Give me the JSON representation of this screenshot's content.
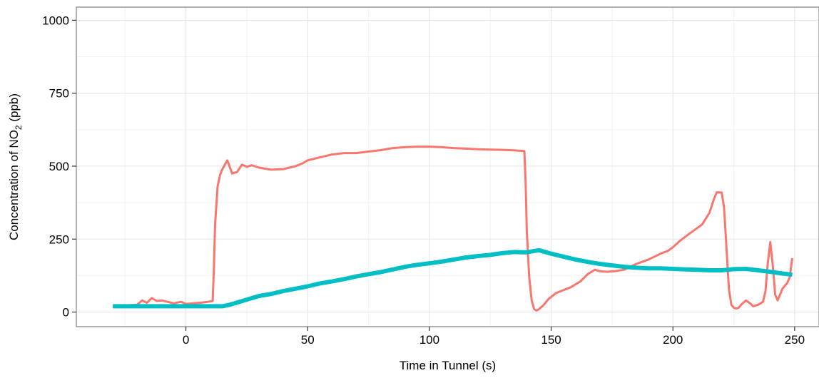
{
  "chart_data": {
    "type": "line",
    "xlabel": "Time in Tunnel (s)",
    "ylabel": "Concentration of NO",
    "ylabel_subscript": "2",
    "ylabel_suffix": " (ppb)",
    "xlim": [
      -45,
      260
    ],
    "ylim": [
      -50,
      1045
    ],
    "x_ticks": [
      0,
      50,
      100,
      150,
      200,
      250
    ],
    "y_ticks": [
      0,
      250,
      500,
      750,
      1000
    ],
    "grid": true,
    "legend": "none",
    "series": [
      {
        "color": "#F8766D",
        "x": [
          -30,
          -20,
          -18,
          -16,
          -14,
          -12,
          -10,
          -8,
          -5,
          -2,
          0,
          3,
          6,
          9,
          11,
          11.5,
          12,
          13,
          14,
          15,
          17,
          19,
          21,
          23,
          25,
          27,
          30,
          35,
          40,
          45,
          48,
          50,
          55,
          60,
          65,
          70,
          75,
          80,
          85,
          90,
          95,
          100,
          105,
          110,
          115,
          120,
          125,
          130,
          135,
          139,
          139.5,
          140,
          141,
          142,
          143,
          144,
          145,
          147,
          149,
          152,
          155,
          158,
          162,
          165,
          168,
          170,
          173,
          176,
          180,
          185,
          190,
          195,
          198,
          200,
          203,
          207,
          212,
          215,
          217,
          218,
          220,
          221,
          222,
          223,
          224,
          225,
          226,
          227,
          228,
          230,
          232,
          233,
          235,
          236,
          237,
          238,
          239,
          240,
          241,
          242,
          243,
          244,
          245,
          246,
          247,
          248,
          249
        ],
        "y": [
          20,
          25,
          40,
          32,
          48,
          38,
          40,
          36,
          30,
          35,
          28,
          30,
          32,
          35,
          38,
          150,
          300,
          430,
          470,
          490,
          520,
          475,
          480,
          505,
          498,
          503,
          495,
          488,
          490,
          500,
          510,
          520,
          530,
          540,
          545,
          545,
          550,
          555,
          562,
          565,
          567,
          567,
          565,
          562,
          560,
          558,
          557,
          556,
          554,
          552,
          450,
          280,
          120,
          40,
          10,
          5,
          10,
          25,
          45,
          65,
          75,
          85,
          105,
          130,
          145,
          140,
          138,
          140,
          145,
          165,
          180,
          200,
          210,
          222,
          245,
          270,
          300,
          340,
          390,
          410,
          410,
          360,
          220,
          80,
          25,
          15,
          12,
          15,
          25,
          40,
          28,
          20,
          25,
          30,
          35,
          70,
          170,
          240,
          160,
          60,
          40,
          60,
          80,
          90,
          100,
          120,
          185
        ]
      },
      {
        "color": "#00BFC4",
        "x": [
          -30,
          -15,
          0,
          10,
          15,
          18,
          22,
          26,
          30,
          35,
          40,
          45,
          50,
          55,
          60,
          65,
          70,
          75,
          80,
          85,
          90,
          95,
          100,
          105,
          110,
          115,
          120,
          125,
          130,
          135,
          138,
          140,
          145,
          150,
          155,
          160,
          165,
          170,
          175,
          180,
          185,
          190,
          195,
          200,
          205,
          210,
          215,
          220,
          225,
          230,
          235,
          240,
          245,
          249
        ],
        "y": [
          20,
          20,
          20,
          20,
          20,
          25,
          35,
          45,
          55,
          62,
          72,
          80,
          88,
          98,
          105,
          113,
          122,
          130,
          137,
          146,
          155,
          162,
          167,
          173,
          180,
          187,
          192,
          196,
          202,
          206,
          205,
          205,
          212,
          200,
          190,
          180,
          172,
          165,
          160,
          155,
          152,
          150,
          150,
          148,
          146,
          145,
          143,
          143,
          147,
          148,
          143,
          138,
          132,
          128
        ]
      }
    ]
  }
}
